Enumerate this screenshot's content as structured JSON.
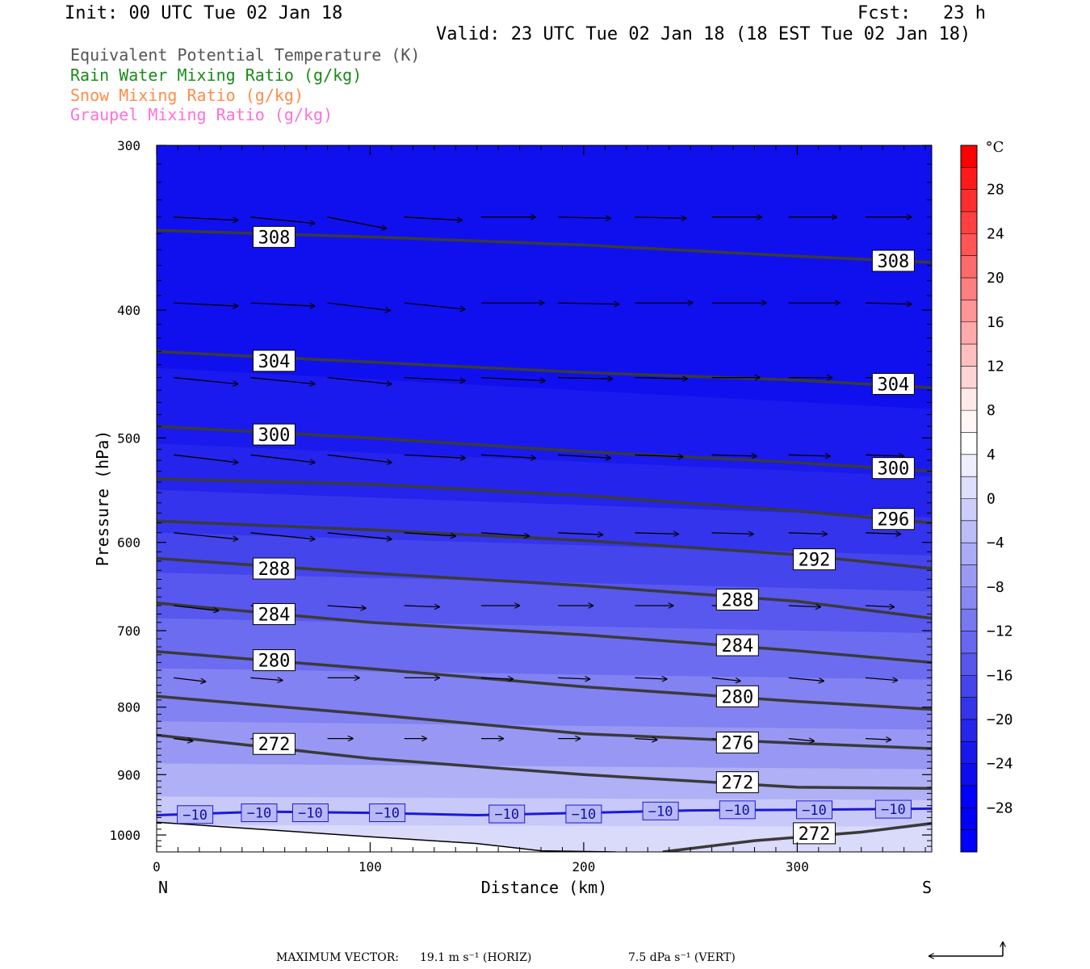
{
  "header": {
    "init": "Init: 00 UTC Tue 02 Jan 18",
    "fcst": "Fcst:   23 h",
    "valid": "Valid: 23 UTC Tue 02 Jan 18 (18 EST Tue 02 Jan 18)"
  },
  "fields": [
    {
      "label": "Equivalent Potential Temperature (K)",
      "color": "#555555"
    },
    {
      "label": "Rain Water Mixing Ratio (g/kg)",
      "color": "#1a8a1a"
    },
    {
      "label": "Snow Mixing Ratio (g/kg)",
      "color": "#ff8c4a"
    },
    {
      "label": "Graupel Mixing Ratio (g/kg)",
      "color": "#ff70d8"
    }
  ],
  "chart_data": {
    "type": "heatmap",
    "description_type": "vertical cross-section: filled temperature contours (°C), theta-e contour lines (K), wind vectors",
    "xlabel": "Distance (km)",
    "ylabel": "Pressure (hPa)",
    "x_ticks": [
      0,
      100,
      200,
      300
    ],
    "xlim": [
      0,
      363
    ],
    "y_ticks": [
      300,
      400,
      500,
      600,
      700,
      800,
      900,
      1000
    ],
    "ylim": [
      1030,
      300
    ],
    "y_log": true,
    "endpoint_labels": {
      "left": "N",
      "right": "S"
    },
    "colorbar": {
      "unit": "°C",
      "tick_labels": [
        "28",
        "24",
        "20",
        "16",
        "12",
        "8",
        "4",
        "0",
        "−4",
        "−8",
        "−12",
        "−16",
        "−20",
        "−24",
        "−28"
      ],
      "tick_values": [
        28,
        24,
        20,
        16,
        12,
        8,
        4,
        0,
        -4,
        -8,
        -12,
        -16,
        -20,
        -24,
        -28
      ],
      "range": [
        -32,
        32
      ]
    },
    "theta_e_contours": [
      {
        "value": 308,
        "points": [
          [
            0,
            348
          ],
          [
            100,
            352
          ],
          [
            200,
            357
          ],
          [
            300,
            364
          ],
          [
            363,
            368
          ]
        ],
        "labels": [
          [
            55,
            352,
            "308"
          ],
          [
            345,
            367,
            "308"
          ]
        ]
      },
      {
        "value": 304,
        "points": [
          [
            0,
            430
          ],
          [
            100,
            438
          ],
          [
            200,
            446
          ],
          [
            300,
            452
          ],
          [
            363,
            458
          ]
        ],
        "labels": [
          [
            55,
            437,
            "304"
          ],
          [
            345,
            455,
            "304"
          ]
        ]
      },
      {
        "value": 300,
        "points": [
          [
            0,
            490
          ],
          [
            100,
            500
          ],
          [
            200,
            512
          ],
          [
            300,
            522
          ],
          [
            363,
            530
          ]
        ],
        "labels": [
          [
            55,
            497,
            "300"
          ],
          [
            345,
            527,
            "300"
          ]
        ]
      },
      {
        "value": 296,
        "points": [
          [
            0,
            537
          ],
          [
            100,
            542
          ],
          [
            200,
            553
          ],
          [
            300,
            568
          ],
          [
            363,
            580
          ]
        ],
        "labels": [
          [
            345,
            576,
            "296"
          ]
        ]
      },
      {
        "value": 292,
        "points": [
          [
            0,
            578
          ],
          [
            100,
            587
          ],
          [
            200,
            598
          ],
          [
            300,
            613
          ],
          [
            363,
            628
          ]
        ],
        "labels": [
          [
            308,
            618,
            "292"
          ]
        ]
      },
      {
        "value": 288,
        "points": [
          [
            0,
            617
          ],
          [
            100,
            633
          ],
          [
            200,
            647
          ],
          [
            300,
            665
          ],
          [
            363,
            685
          ]
        ],
        "labels": [
          [
            55,
            628,
            "288"
          ],
          [
            272,
            663,
            "288"
          ]
        ]
      },
      {
        "value": 284,
        "points": [
          [
            0,
            667
          ],
          [
            100,
            690
          ],
          [
            200,
            705
          ],
          [
            300,
            725
          ],
          [
            363,
            740
          ]
        ],
        "labels": [
          [
            55,
            680,
            "284"
          ],
          [
            272,
            718,
            "284"
          ]
        ]
      },
      {
        "value": 280,
        "points": [
          [
            0,
            726
          ],
          [
            100,
            748
          ],
          [
            200,
            772
          ],
          [
            300,
            792
          ],
          [
            363,
            803
          ]
        ],
        "labels": [
          [
            55,
            737,
            "280"
          ],
          [
            272,
            785,
            "280"
          ]
        ]
      },
      {
        "value": 276,
        "points": [
          [
            0,
            785
          ],
          [
            100,
            810
          ],
          [
            200,
            838
          ],
          [
            300,
            852
          ],
          [
            363,
            860
          ]
        ],
        "labels": [
          [
            272,
            851,
            "276"
          ]
        ]
      },
      {
        "value": 272,
        "points": [
          [
            0,
            840
          ],
          [
            100,
            875
          ],
          [
            200,
            900
          ],
          [
            300,
            920
          ],
          [
            363,
            922
          ]
        ],
        "labels": [
          [
            55,
            853,
            "272"
          ],
          [
            272,
            912,
            "272"
          ]
        ]
      },
      {
        "value": 272,
        "points": [
          [
            237,
            1030
          ],
          [
            280,
            1010
          ],
          [
            330,
            995
          ],
          [
            363,
            980
          ]
        ],
        "labels": [
          [
            308,
            997,
            "272"
          ]
        ]
      }
    ],
    "isotherm": {
      "value": -10,
      "points": [
        [
          0,
          966
        ],
        [
          50,
          960
        ],
        [
          100,
          962
        ],
        [
          150,
          966
        ],
        [
          200,
          962
        ],
        [
          250,
          958
        ],
        [
          300,
          957
        ],
        [
          363,
          955
        ]
      ],
      "labels": [
        [
          18,
          965,
          "−10"
        ],
        [
          48,
          962,
          "−10"
        ],
        [
          72,
          962,
          "−10"
        ],
        [
          108,
          962,
          "−10"
        ],
        [
          164,
          964,
          "−10"
        ],
        [
          200,
          964,
          "−10"
        ],
        [
          236,
          959,
          "−10"
        ],
        [
          272,
          957,
          "−10"
        ],
        [
          308,
          957,
          "−10"
        ],
        [
          345,
          956,
          "−10"
        ]
      ]
    },
    "surface_boundary": [
      [
        0,
        978
      ],
      [
        100,
        1003
      ],
      [
        150,
        1015
      ],
      [
        180,
        1028
      ],
      [
        215,
        1030
      ]
    ],
    "wind_vectors": {
      "x": [
        8,
        44,
        80,
        116,
        152,
        188,
        224,
        260,
        296,
        332
      ],
      "rows": [
        {
          "p": 340,
          "u": [
            1.0,
            1.0,
            0.92,
            0.9,
            0.85,
            0.82,
            0.8,
            0.78,
            0.75,
            0.72
          ],
          "w": [
            0.05,
            0.1,
            0.18,
            0.05,
            0.0,
            0.02,
            0.02,
            0.0,
            0.0,
            0.0
          ]
        },
        {
          "p": 395,
          "u": [
            1.0,
            1.0,
            0.98,
            0.95,
            0.98,
            0.95,
            0.9,
            0.85,
            0.8,
            0.72
          ],
          "w": [
            0.05,
            0.05,
            0.12,
            0.1,
            0.0,
            0.02,
            0.0,
            0.0,
            0.0,
            0.02
          ]
        },
        {
          "p": 450,
          "u": [
            1.0,
            1.0,
            1.0,
            0.95,
            1.0,
            0.85,
            0.82,
            0.75,
            0.68,
            0.62
          ],
          "w": [
            0.1,
            0.1,
            0.1,
            0.05,
            0.05,
            0.02,
            0.02,
            0.0,
            0.0,
            0.0
          ]
        },
        {
          "p": 515,
          "u": [
            1.0,
            1.0,
            1.0,
            0.95,
            0.85,
            0.82,
            0.75,
            0.7,
            0.65,
            0.6
          ],
          "w": [
            0.12,
            0.12,
            0.12,
            0.05,
            0.05,
            0.05,
            0.03,
            0.02,
            0.02,
            0.02
          ]
        },
        {
          "p": 590,
          "u": [
            1.0,
            1.0,
            1.0,
            0.8,
            0.75,
            0.7,
            0.68,
            0.65,
            0.6,
            0.55
          ],
          "w": [
            0.1,
            0.1,
            0.1,
            0.05,
            0.05,
            0.03,
            0.02,
            0.02,
            0.02,
            0.02
          ]
        },
        {
          "p": 670,
          "u": [
            0.7,
            0.7,
            0.6,
            0.55,
            0.6,
            0.55,
            0.6,
            0.55,
            0.5,
            0.45
          ],
          "w": [
            0.08,
            0.06,
            0.04,
            0.02,
            0.0,
            0.0,
            0.0,
            0.02,
            0.02,
            0.02
          ]
        },
        {
          "p": 760,
          "u": [
            0.5,
            0.5,
            0.5,
            0.55,
            0.5,
            0.5,
            0.5,
            0.45,
            0.55,
            0.5
          ],
          "w": [
            0.06,
            0.04,
            0.0,
            0.0,
            0.02,
            0.02,
            0.02,
            0.05,
            0.05,
            0.04
          ]
        },
        {
          "p": 845,
          "u": [
            0.3,
            0.4,
            0.4,
            0.35,
            0.35,
            0.35,
            0.35,
            0.35,
            0.4,
            0.4
          ],
          "w": [
            0.04,
            0.04,
            0.0,
            0.0,
            0.0,
            0.0,
            0.02,
            0.05,
            0.04,
            0.02
          ]
        }
      ]
    },
    "max_vector": {
      "prefix": "MAXIMUM VECTOR:",
      "horiz": "19.1 m s⁻¹ (HORIZ)",
      "vert": "7.5 dPa s⁻¹ (VERT)"
    }
  }
}
